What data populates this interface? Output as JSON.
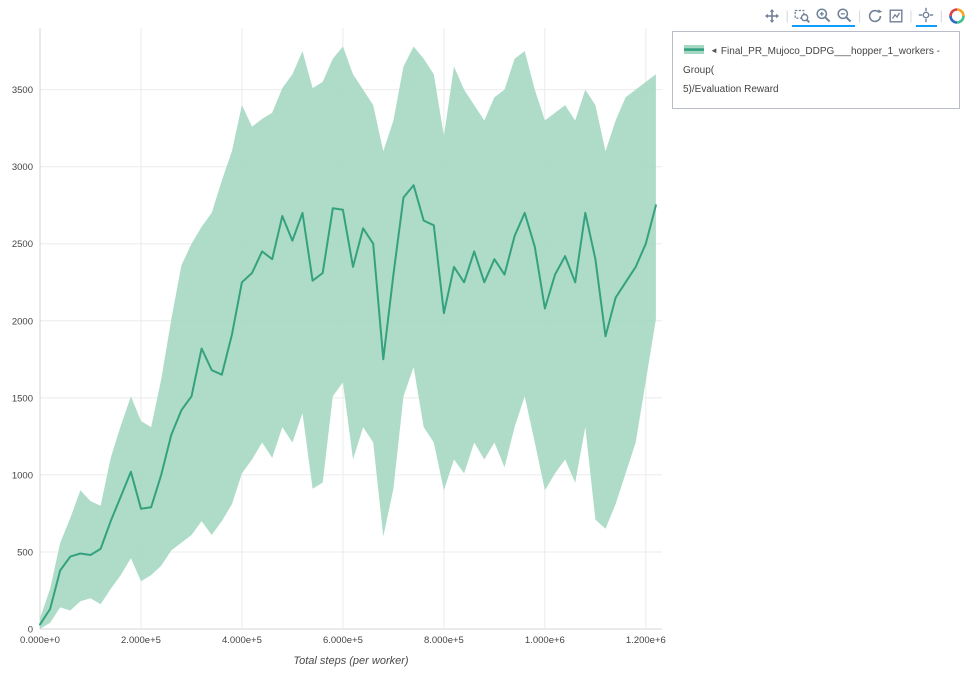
{
  "modebar": {
    "accent_color": "#119dff",
    "icon_color": "#6f8098",
    "groups": [
      [
        "pan"
      ],
      [
        "box-zoom",
        "zoom-in",
        "zoom-out"
      ],
      [
        "reset",
        "autoscale"
      ],
      [
        "spikelines"
      ]
    ],
    "active": [
      "box-zoom",
      "zoom-in",
      "zoom-out",
      "spikelines"
    ],
    "logo": "plotly-logo"
  },
  "legend": {
    "arrow": "◄",
    "label_lines": [
      "Final_PR_Mujoco_DDPG___hopper_1_workers - Group(",
      "5)/Evaluation Reward"
    ],
    "full_label": "Final_PR_Mujoco_DDPG___hopper_1_workers - Group(5)/Evaluation Reward"
  },
  "chart_data": {
    "type": "line",
    "title": "",
    "xlabel": "Total steps (per worker)",
    "ylabel": "",
    "grid": true,
    "legend_position": "top-right-outside",
    "line_color": "#35a27f",
    "band_color": "#a5d8c3",
    "xlim": [
      0,
      1232000
    ],
    "ylim": [
      0,
      3900
    ],
    "xticks": [
      0,
      200000,
      400000,
      600000,
      800000,
      1000000,
      1200000
    ],
    "xtick_labels": [
      "0.000e+0",
      "2.000e+5",
      "4.000e+5",
      "6.000e+5",
      "8.000e+5",
      "1.000e+6",
      "1.200e+6"
    ],
    "yticks": [
      0,
      500,
      1000,
      1500,
      2000,
      2500,
      3000,
      3500
    ],
    "ytick_labels": [
      "0",
      "500",
      "1000",
      "1500",
      "2000",
      "2500",
      "3000",
      "3500"
    ],
    "series": [
      {
        "name": "Final_PR_Mujoco_DDPG___hopper_1_workers - Group(5)/Evaluation Reward",
        "x": [
          0,
          20000,
          40000,
          60000,
          80000,
          100000,
          120000,
          140000,
          160000,
          180000,
          200000,
          220000,
          240000,
          260000,
          280000,
          300000,
          320000,
          340000,
          360000,
          380000,
          400000,
          420000,
          440000,
          460000,
          480000,
          500000,
          520000,
          540000,
          560000,
          580000,
          600000,
          620000,
          640000,
          660000,
          680000,
          700000,
          720000,
          740000,
          760000,
          780000,
          800000,
          820000,
          840000,
          860000,
          880000,
          900000,
          920000,
          940000,
          960000,
          980000,
          1000000,
          1020000,
          1040000,
          1060000,
          1080000,
          1100000,
          1120000,
          1140000,
          1160000,
          1180000,
          1200000,
          1220000
        ],
        "mean": [
          30,
          130,
          380,
          470,
          490,
          480,
          520,
          700,
          860,
          1020,
          780,
          790,
          1000,
          1260,
          1420,
          1510,
          1820,
          1680,
          1650,
          1910,
          2250,
          2310,
          2450,
          2400,
          2680,
          2520,
          2700,
          2260,
          2310,
          2730,
          2720,
          2350,
          2600,
          2500,
          1750,
          2300,
          2800,
          2880,
          2650,
          2620,
          2050,
          2350,
          2250,
          2450,
          2250,
          2400,
          2300,
          2550,
          2700,
          2480,
          2080,
          2300,
          2420,
          2250,
          2700,
          2400,
          1900,
          2150,
          2250,
          2350,
          2500,
          2750
        ],
        "lower": [
          0,
          40,
          140,
          120,
          180,
          200,
          160,
          260,
          350,
          460,
          310,
          350,
          410,
          510,
          560,
          610,
          700,
          610,
          700,
          810,
          1010,
          1100,
          1210,
          1110,
          1310,
          1210,
          1400,
          910,
          950,
          1510,
          1600,
          1100,
          1310,
          1210,
          600,
          910,
          1510,
          1700,
          1310,
          1210,
          900,
          1100,
          1010,
          1210,
          1100,
          1210,
          1050,
          1310,
          1510,
          1210,
          900,
          1010,
          1100,
          950,
          1310,
          710,
          650,
          810,
          1010,
          1210,
          1610,
          2010
        ],
        "upper": [
          70,
          260,
          560,
          720,
          900,
          830,
          800,
          1110,
          1320,
          1510,
          1350,
          1310,
          1620,
          2010,
          2360,
          2500,
          2610,
          2700,
          2910,
          3100,
          3400,
          3260,
          3310,
          3350,
          3510,
          3600,
          3750,
          3510,
          3550,
          3700,
          3780,
          3600,
          3500,
          3400,
          3100,
          3300,
          3650,
          3780,
          3700,
          3600,
          3200,
          3650,
          3500,
          3400,
          3300,
          3450,
          3500,
          3700,
          3750,
          3500,
          3300,
          3350,
          3400,
          3300,
          3500,
          3400,
          3100,
          3300,
          3450,
          3500,
          3550,
          3600
        ]
      }
    ]
  }
}
